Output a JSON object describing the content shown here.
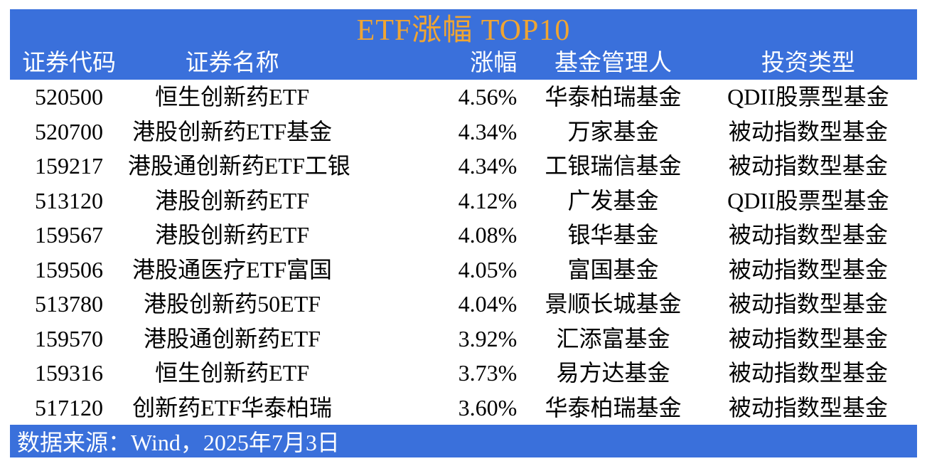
{
  "title": "ETF涨幅 TOP10",
  "chart_data": {
    "type": "table",
    "title": "ETF涨幅 TOP10",
    "columns": [
      "证券代码",
      "证券名称",
      "涨幅",
      "基金管理人",
      "投资类型"
    ],
    "rows": [
      [
        "520500",
        "恒生创新药ETF",
        "4.56%",
        "华泰柏瑞基金",
        "QDII股票型基金"
      ],
      [
        "520700",
        "港股创新药ETF基金",
        "4.34%",
        "万家基金",
        "被动指数型基金"
      ],
      [
        "159217",
        "港股通创新药ETF工银",
        "4.34%",
        "工银瑞信基金",
        "被动指数型基金"
      ],
      [
        "513120",
        "港股创新药ETF",
        "4.12%",
        "广发基金",
        "QDII股票型基金"
      ],
      [
        "159567",
        "港股创新药ETF",
        "4.08%",
        "银华基金",
        "被动指数型基金"
      ],
      [
        "159506",
        "港股通医疗ETF富国",
        "4.05%",
        "富国基金",
        "被动指数型基金"
      ],
      [
        "513780",
        "港股创新药50ETF",
        "4.04%",
        "景顺长城基金",
        "被动指数型基金"
      ],
      [
        "159570",
        "港股通创新药ETF",
        "3.92%",
        "汇添富基金",
        "被动指数型基金"
      ],
      [
        "159316",
        "恒生创新药ETF",
        "3.73%",
        "易方达基金",
        "被动指数型基金"
      ],
      [
        "517120",
        "创新药ETF华泰柏瑞",
        "3.60%",
        "华泰柏瑞基金",
        "被动指数型基金"
      ]
    ]
  },
  "footer": {
    "source": "数据来源：Wind，2025年7月3日"
  },
  "colors": {
    "panel_blue": "#3A70DB",
    "title_gold": "#F0A532",
    "header_text": "#FFFFFF",
    "row_text": "#000000",
    "page_bg": "#FFFFFF"
  }
}
